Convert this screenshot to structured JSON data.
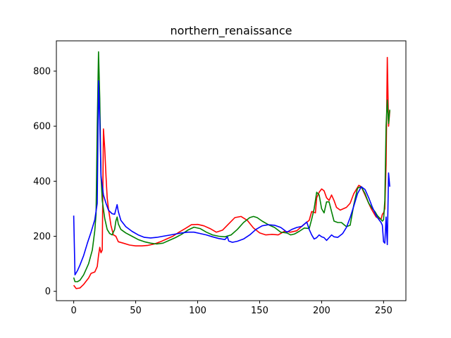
{
  "chart_data": {
    "type": "line",
    "title": "northern_renaissance",
    "xlabel": "",
    "ylabel": "",
    "xlim": [
      -14,
      268
    ],
    "ylim": [
      -34,
      910
    ],
    "xticks": [
      0,
      50,
      100,
      150,
      200,
      250
    ],
    "yticks": [
      0,
      200,
      400,
      600,
      800
    ],
    "grid": false,
    "legend": "none",
    "series": [
      {
        "color": "#ff0000",
        "points": [
          [
            0,
            22
          ],
          [
            2,
            10
          ],
          [
            5,
            12
          ],
          [
            8,
            25
          ],
          [
            12,
            48
          ],
          [
            14,
            65
          ],
          [
            17,
            70
          ],
          [
            19,
            90
          ],
          [
            20,
            130
          ],
          [
            21,
            160
          ],
          [
            22,
            140
          ],
          [
            23,
            150
          ],
          [
            24,
            590
          ],
          [
            25,
            520
          ],
          [
            26,
            420
          ],
          [
            27,
            340
          ],
          [
            28,
            300
          ],
          [
            30,
            240
          ],
          [
            32,
            205
          ],
          [
            34,
            200
          ],
          [
            36,
            180
          ],
          [
            40,
            175
          ],
          [
            45,
            168
          ],
          [
            50,
            165
          ],
          [
            55,
            165
          ],
          [
            60,
            167
          ],
          [
            65,
            172
          ],
          [
            70,
            180
          ],
          [
            75,
            190
          ],
          [
            80,
            200
          ],
          [
            85,
            215
          ],
          [
            90,
            228
          ],
          [
            95,
            242
          ],
          [
            100,
            243
          ],
          [
            105,
            238
          ],
          [
            110,
            228
          ],
          [
            115,
            215
          ],
          [
            120,
            222
          ],
          [
            125,
            245
          ],
          [
            130,
            268
          ],
          [
            135,
            272
          ],
          [
            140,
            258
          ],
          [
            145,
            230
          ],
          [
            150,
            212
          ],
          [
            155,
            205
          ],
          [
            160,
            207
          ],
          [
            165,
            205
          ],
          [
            170,
            218
          ],
          [
            175,
            215
          ],
          [
            180,
            220
          ],
          [
            185,
            240
          ],
          [
            190,
            258
          ],
          [
            192,
            290
          ],
          [
            195,
            285
          ],
          [
            196,
            340
          ],
          [
            198,
            360
          ],
          [
            200,
            372
          ],
          [
            202,
            365
          ],
          [
            204,
            340
          ],
          [
            206,
            330
          ],
          [
            208,
            350
          ],
          [
            210,
            330
          ],
          [
            212,
            305
          ],
          [
            215,
            295
          ],
          [
            220,
            305
          ],
          [
            223,
            320
          ],
          [
            226,
            355
          ],
          [
            230,
            385
          ],
          [
            232,
            380
          ],
          [
            235,
            350
          ],
          [
            238,
            320
          ],
          [
            240,
            300
          ],
          [
            242,
            285
          ],
          [
            244,
            270
          ],
          [
            246,
            265
          ],
          [
            248,
            262
          ],
          [
            249,
            280
          ],
          [
            250,
            285
          ],
          [
            251,
            300
          ],
          [
            252,
            460
          ],
          [
            253,
            850
          ],
          [
            254,
            600
          ],
          [
            255,
            655
          ]
        ]
      },
      {
        "color": "#008000",
        "points": [
          [
            0,
            50
          ],
          [
            1,
            35
          ],
          [
            3,
            35
          ],
          [
            5,
            40
          ],
          [
            8,
            60
          ],
          [
            12,
            100
          ],
          [
            15,
            150
          ],
          [
            17,
            220
          ],
          [
            18,
            280
          ],
          [
            19,
            600
          ],
          [
            20,
            870
          ],
          [
            21,
            700
          ],
          [
            22,
            420
          ],
          [
            23,
            330
          ],
          [
            25,
            265
          ],
          [
            27,
            225
          ],
          [
            29,
            210
          ],
          [
            31,
            205
          ],
          [
            33,
            225
          ],
          [
            34,
            255
          ],
          [
            35,
            270
          ],
          [
            36,
            245
          ],
          [
            38,
            225
          ],
          [
            42,
            212
          ],
          [
            47,
            200
          ],
          [
            52,
            188
          ],
          [
            57,
            180
          ],
          [
            62,
            175
          ],
          [
            67,
            172
          ],
          [
            72,
            175
          ],
          [
            77,
            185
          ],
          [
            82,
            195
          ],
          [
            87,
            207
          ],
          [
            92,
            222
          ],
          [
            97,
            233
          ],
          [
            102,
            228
          ],
          [
            107,
            215
          ],
          [
            112,
            205
          ],
          [
            117,
            200
          ],
          [
            122,
            198
          ],
          [
            127,
            205
          ],
          [
            132,
            225
          ],
          [
            137,
            250
          ],
          [
            142,
            268
          ],
          [
            145,
            272
          ],
          [
            148,
            268
          ],
          [
            152,
            255
          ],
          [
            157,
            242
          ],
          [
            162,
            232
          ],
          [
            167,
            215
          ],
          [
            172,
            212
          ],
          [
            175,
            205
          ],
          [
            178,
            208
          ],
          [
            182,
            218
          ],
          [
            186,
            230
          ],
          [
            190,
            228
          ],
          [
            192,
            262
          ],
          [
            194,
            300
          ],
          [
            196,
            360
          ],
          [
            198,
            350
          ],
          [
            200,
            300
          ],
          [
            202,
            285
          ],
          [
            204,
            325
          ],
          [
            206,
            325
          ],
          [
            208,
            290
          ],
          [
            210,
            255
          ],
          [
            213,
            250
          ],
          [
            216,
            250
          ],
          [
            220,
            235
          ],
          [
            223,
            240
          ],
          [
            226,
            315
          ],
          [
            229,
            375
          ],
          [
            232,
            380
          ],
          [
            235,
            355
          ],
          [
            238,
            320
          ],
          [
            241,
            300
          ],
          [
            243,
            290
          ],
          [
            245,
            275
          ],
          [
            247,
            265
          ],
          [
            249,
            255
          ],
          [
            250,
            260
          ],
          [
            251,
            330
          ],
          [
            252,
            600
          ],
          [
            253,
            695
          ],
          [
            254,
            610
          ],
          [
            255,
            660
          ]
        ]
      },
      {
        "color": "#0000ff",
        "points": [
          [
            0,
            275
          ],
          [
            1,
            60
          ],
          [
            3,
            75
          ],
          [
            5,
            95
          ],
          [
            8,
            130
          ],
          [
            11,
            175
          ],
          [
            14,
            215
          ],
          [
            17,
            260
          ],
          [
            19,
            320
          ],
          [
            20,
            765
          ],
          [
            21,
            620
          ],
          [
            22,
            420
          ],
          [
            24,
            350
          ],
          [
            26,
            320
          ],
          [
            28,
            295
          ],
          [
            31,
            282
          ],
          [
            33,
            280
          ],
          [
            35,
            315
          ],
          [
            36,
            290
          ],
          [
            38,
            258
          ],
          [
            42,
            235
          ],
          [
            47,
            218
          ],
          [
            52,
            205
          ],
          [
            57,
            196
          ],
          [
            62,
            194
          ],
          [
            67,
            196
          ],
          [
            72,
            200
          ],
          [
            77,
            204
          ],
          [
            82,
            208
          ],
          [
            87,
            212
          ],
          [
            92,
            215
          ],
          [
            97,
            215
          ],
          [
            102,
            210
          ],
          [
            107,
            205
          ],
          [
            112,
            198
          ],
          [
            117,
            192
          ],
          [
            122,
            188
          ],
          [
            124,
            198
          ],
          [
            125,
            183
          ],
          [
            128,
            178
          ],
          [
            132,
            182
          ],
          [
            137,
            190
          ],
          [
            142,
            205
          ],
          [
            147,
            225
          ],
          [
            152,
            238
          ],
          [
            157,
            242
          ],
          [
            162,
            240
          ],
          [
            167,
            232
          ],
          [
            170,
            222
          ],
          [
            172,
            215
          ],
          [
            176,
            225
          ],
          [
            180,
            232
          ],
          [
            184,
            236
          ],
          [
            188,
            252
          ],
          [
            190,
            225
          ],
          [
            192,
            205
          ],
          [
            194,
            190
          ],
          [
            196,
            195
          ],
          [
            198,
            205
          ],
          [
            200,
            198
          ],
          [
            202,
            195
          ],
          [
            204,
            185
          ],
          [
            206,
            195
          ],
          [
            208,
            205
          ],
          [
            210,
            198
          ],
          [
            213,
            196
          ],
          [
            217,
            210
          ],
          [
            220,
            232
          ],
          [
            223,
            268
          ],
          [
            226,
            310
          ],
          [
            229,
            355
          ],
          [
            232,
            380
          ],
          [
            235,
            370
          ],
          [
            238,
            340
          ],
          [
            241,
            305
          ],
          [
            244,
            275
          ],
          [
            246,
            262
          ],
          [
            248,
            250
          ],
          [
            249,
            240
          ],
          [
            250,
            180
          ],
          [
            251,
            175
          ],
          [
            252,
            270
          ],
          [
            253,
            170
          ],
          [
            254,
            430
          ],
          [
            255,
            380
          ]
        ]
      }
    ]
  }
}
